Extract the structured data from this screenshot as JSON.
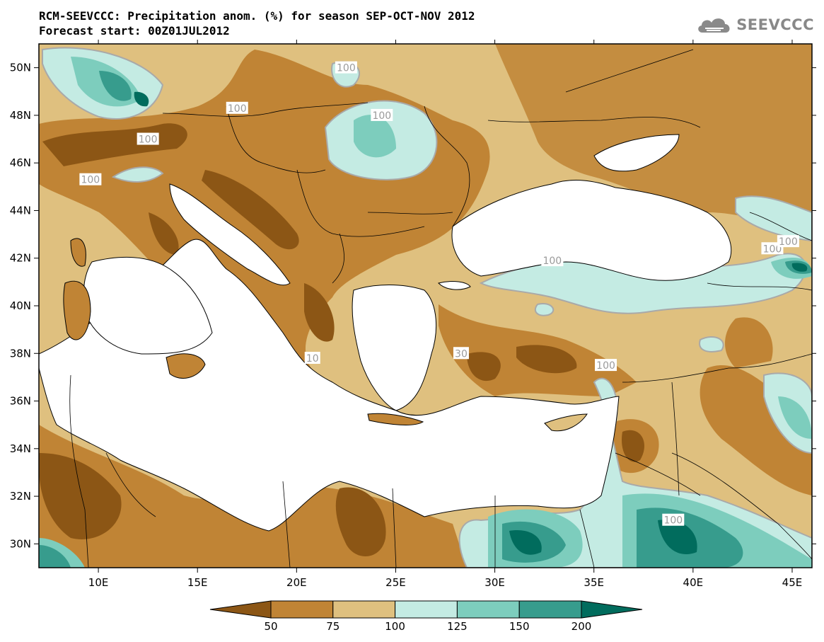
{
  "header": {
    "title": "RCM-SEEVCCC: Precipitation anom. (%) for season SEP-OCT-NOV 2012",
    "subtitle": "Forecast start: 00Z01JUL2012"
  },
  "logo": {
    "text": "SEEVCCC",
    "icon": "cloud-icon"
  },
  "map": {
    "lat_ticks": [
      "50N",
      "48N",
      "46N",
      "44N",
      "42N",
      "40N",
      "38N",
      "36N",
      "34N",
      "32N",
      "30N"
    ],
    "lat_values": [
      50,
      48,
      46,
      44,
      42,
      40,
      38,
      36,
      34,
      32,
      30
    ],
    "lon_ticks": [
      "10E",
      "15E",
      "20E",
      "25E",
      "30E",
      "35E",
      "40E",
      "45E"
    ],
    "lon_values": [
      10,
      15,
      20,
      25,
      30,
      35,
      40,
      45
    ],
    "lon_range": [
      7,
      46
    ],
    "lat_range": [
      29,
      51
    ],
    "contour_labels": [
      {
        "text": "100",
        "lon": 22.5,
        "lat": 50.0
      },
      {
        "text": "100",
        "lon": 17.0,
        "lat": 48.3
      },
      {
        "text": "100",
        "lon": 24.3,
        "lat": 48.0
      },
      {
        "text": "100",
        "lon": 12.5,
        "lat": 47.0
      },
      {
        "text": "100",
        "lon": 9.6,
        "lat": 45.3
      },
      {
        "text": "100",
        "lon": 44.0,
        "lat": 42.4
      },
      {
        "text": "100",
        "lon": 44.8,
        "lat": 42.7
      },
      {
        "text": "100",
        "lon": 32.9,
        "lat": 41.9
      },
      {
        "text": "100",
        "lon": 35.6,
        "lat": 37.5
      },
      {
        "text": "100",
        "lon": 39.0,
        "lat": 31.0
      },
      {
        "text": "10",
        "lon": 20.8,
        "lat": 37.8
      },
      {
        "text": "30",
        "lon": 28.3,
        "lat": 38.0
      }
    ],
    "colors": {
      "below_50": "#8c5615",
      "c50_75": "#c08435",
      "c75_100": "#dfc07f",
      "c100_125": "#c4ebe3",
      "c125_150": "#7dcdbd",
      "c150_200": "#379c8d",
      "above_200": "#016c5d",
      "land_border": "#000000",
      "sea": "#ffffff",
      "contour_line": "#a9a9a9"
    }
  },
  "colorbar": {
    "labels": [
      "50",
      "75",
      "100",
      "125",
      "150",
      "200"
    ],
    "colors": [
      "#8c5615",
      "#c08435",
      "#dfc07f",
      "#c4ebe3",
      "#7dcdbd",
      "#379c8d",
      "#016c5d"
    ]
  }
}
